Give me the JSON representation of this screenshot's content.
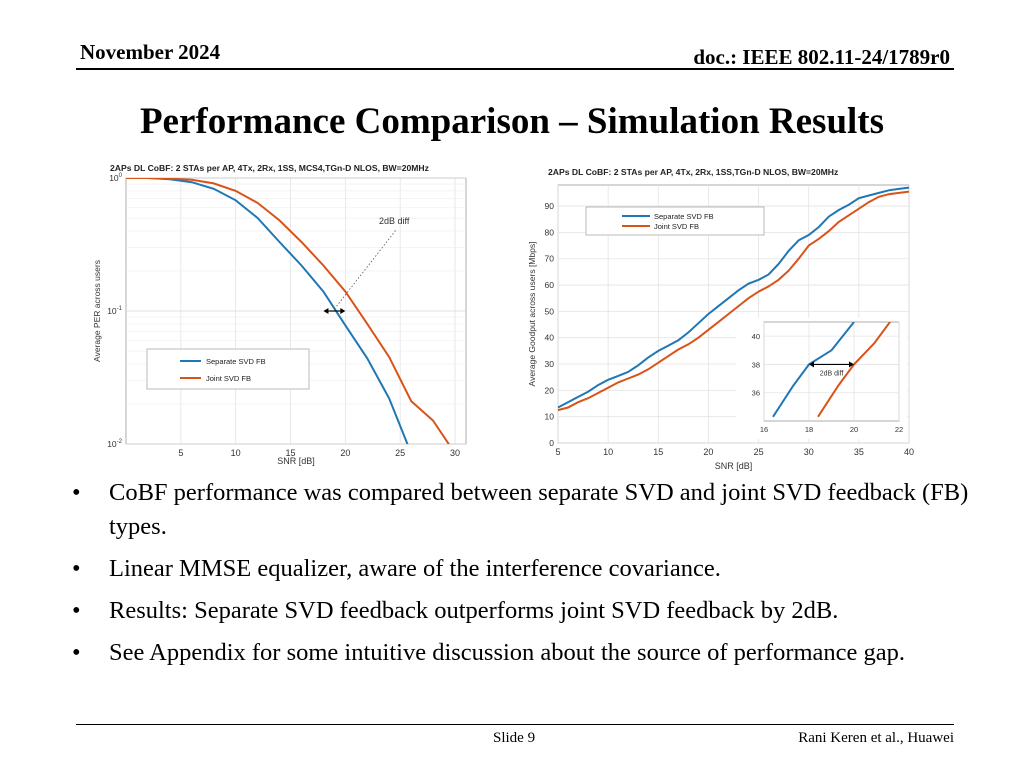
{
  "header": {
    "date": "November 2024",
    "doc": "doc.: IEEE 802.11-24/1789r0"
  },
  "title": "Performance Comparison – Simulation Results",
  "chart_data": [
    {
      "type": "line",
      "title": "2APs DL CoBF: 2 STAs per AP, 4Tx, 2Rx, 1SS, MCS4,TGn-D NLOS, BW=20MHz",
      "xlabel": "SNR [dB]",
      "ylabel": "Average PER across users",
      "xlim": [
        0,
        31
      ],
      "ylim": [
        0.01,
        1
      ],
      "yscale": "log",
      "xticks": [
        5,
        10,
        15,
        20,
        25,
        30
      ],
      "yticks": [
        {
          "label": "10",
          "exp": "0",
          "v": 1
        },
        {
          "label": "10",
          "exp": "-1",
          "v": 0.1
        },
        {
          "label": "10",
          "exp": "-2",
          "v": 0.01
        }
      ],
      "grid": true,
      "legend_position": "lower-left",
      "series": [
        {
          "name": "Separate SVD FB",
          "color": "#1f77b4",
          "x": [
            0,
            2,
            4,
            6,
            8,
            10,
            12,
            14,
            16,
            18,
            20,
            22,
            24,
            26
          ],
          "y": [
            1.0,
            1.0,
            0.98,
            0.93,
            0.83,
            0.68,
            0.5,
            0.33,
            0.22,
            0.14,
            0.078,
            0.044,
            0.022,
            0.0085
          ]
        },
        {
          "name": "Joint SVD FB",
          "color": "#d95319",
          "x": [
            0,
            2,
            4,
            6,
            8,
            10,
            12,
            14,
            16,
            18,
            20,
            22,
            24,
            26,
            28,
            30
          ],
          "y": [
            1.0,
            1.0,
            0.99,
            0.97,
            0.91,
            0.8,
            0.65,
            0.48,
            0.33,
            0.22,
            0.14,
            0.08,
            0.045,
            0.021,
            0.015,
            0.0085
          ]
        }
      ],
      "annotation": {
        "text": "2dB diff",
        "x1": 18,
        "x2": 20,
        "y": 0.1
      }
    },
    {
      "type": "line",
      "title": "2APs DL CoBF: 2 STAs per AP, 4Tx, 2Rx, 1SS,TGn-D NLOS, BW=20MHz",
      "xlabel": "SNR [dB]",
      "ylabel": "Average Goodput across users [Mbps]",
      "xlim": [
        5,
        40
      ],
      "ylim": [
        0,
        98
      ],
      "xticks": [
        5,
        10,
        15,
        20,
        25,
        30,
        35,
        40
      ],
      "yticks": [
        0,
        10,
        20,
        30,
        40,
        50,
        60,
        70,
        80,
        90
      ],
      "grid": true,
      "legend_position": "top-left",
      "series": [
        {
          "name": "Separate SVD FB",
          "color": "#1f77b4",
          "x": [
            5,
            6,
            7,
            8,
            9,
            10,
            11,
            12,
            13,
            14,
            15,
            16,
            17,
            18,
            19,
            20,
            21,
            22,
            23,
            24,
            25,
            26,
            27,
            28,
            29,
            30,
            31,
            32,
            33,
            34,
            35,
            36,
            37,
            38,
            39,
            40
          ],
          "y": [
            13.5,
            15.5,
            17.5,
            19.5,
            22,
            24,
            25.5,
            27,
            29.5,
            32.5,
            35,
            37,
            39,
            42,
            45.5,
            49,
            52,
            55,
            58,
            60.5,
            62,
            64,
            68,
            73,
            77,
            79,
            82,
            86,
            88.5,
            90.5,
            93,
            94,
            95,
            96,
            96.5,
            97
          ]
        },
        {
          "name": "Joint SVD FB",
          "color": "#d95319",
          "x": [
            5,
            6,
            7,
            8,
            9,
            10,
            11,
            12,
            13,
            14,
            15,
            16,
            17,
            18,
            19,
            20,
            21,
            22,
            23,
            24,
            25,
            26,
            27,
            28,
            29,
            30,
            31,
            32,
            33,
            34,
            35,
            36,
            37,
            38,
            39,
            40
          ],
          "y": [
            12.5,
            13.5,
            15.5,
            17,
            19,
            21,
            23,
            24.5,
            26,
            28,
            30.5,
            33,
            35.5,
            37.5,
            40,
            43,
            46,
            49,
            52,
            55,
            57.5,
            59.5,
            62,
            65.5,
            70,
            75,
            77.5,
            80.5,
            84,
            86.5,
            89,
            91.5,
            93.5,
            94.5,
            95,
            95.5
          ]
        }
      ],
      "inset": {
        "xlim": [
          16,
          22
        ],
        "ylim": [
          34,
          41
        ],
        "xticks": [
          16,
          18,
          20,
          22
        ],
        "yticks": [
          36,
          38,
          40
        ],
        "series": [
          {
            "name": "Separate SVD FB",
            "color": "#1f77b4",
            "x": [
              16.4,
              17.3,
              18.0,
              19.0,
              20.0
            ],
            "y": [
              34.3,
              36.5,
              38.0,
              39.0,
              41.0
            ]
          },
          {
            "name": "Joint SVD FB",
            "color": "#d95319",
            "x": [
              18.4,
              19.3,
              20.0,
              20.9,
              21.6
            ],
            "y": [
              34.3,
              36.5,
              38.0,
              39.5,
              41.0
            ]
          }
        ],
        "annotation": {
          "text": "2dB diff",
          "x1": 18,
          "x2": 20,
          "y": 38
        }
      }
    }
  ],
  "bullets": [
    "CoBF performance was compared between separate SVD and joint SVD feedback (FB) types.",
    "Linear MMSE equalizer, aware of the interference covariance.",
    "Results: Separate SVD feedback outperforms joint SVD feedback by 2dB.",
    "See Appendix for some intuitive discussion about the source of performance gap."
  ],
  "bullet_symbol": "•",
  "footer": {
    "slide": "Slide 9",
    "author": "Rani Keren et al., Huawei"
  }
}
